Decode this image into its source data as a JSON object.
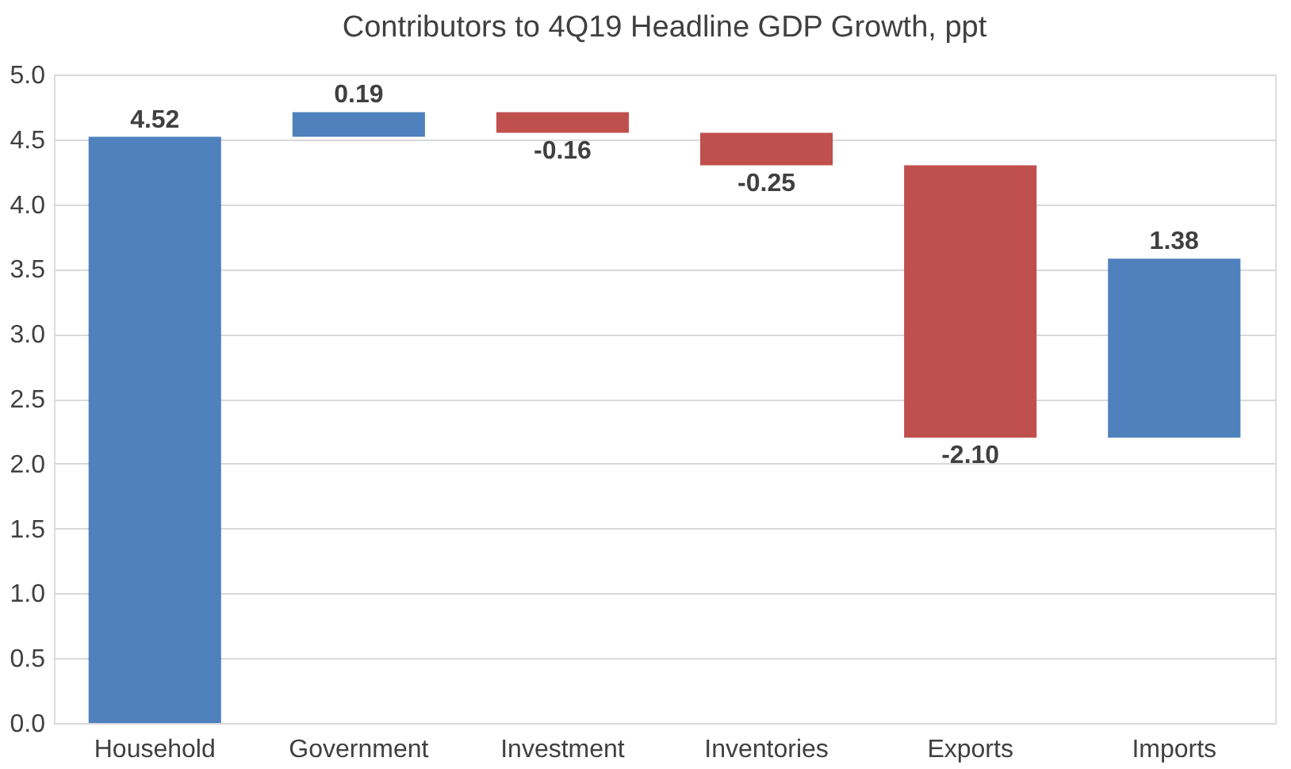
{
  "chart_data": {
    "type": "bar",
    "title": "Contributors to 4Q19 Headline GDP Growth, ppt",
    "categories": [
      "Household",
      "Government",
      "Investment",
      "Inventories",
      "Exports",
      "Imports"
    ],
    "values": [
      4.52,
      0.19,
      -0.16,
      -0.25,
      -2.1,
      1.38
    ],
    "base": [
      0,
      4.52,
      4.71,
      4.55,
      4.3,
      2.2
    ],
    "colors": [
      "#4f81bd",
      "#4f81bd",
      "#c0504d",
      "#c0504d",
      "#c0504d",
      "#4f81bd"
    ],
    "value_labels": [
      "4.52",
      "0.19",
      "-0.16",
      "-0.25",
      "-2.10",
      "1.38"
    ],
    "ylim": [
      0,
      5
    ],
    "yticks": [
      {
        "value": 0,
        "label": "0.0"
      },
      {
        "value": 0.5,
        "label": "0.5"
      },
      {
        "value": 1,
        "label": "1.0"
      },
      {
        "value": 1.5,
        "label": "1.5"
      },
      {
        "value": 2,
        "label": "2.0"
      },
      {
        "value": 2.5,
        "label": "2.5"
      },
      {
        "value": 3,
        "label": "3.0"
      },
      {
        "value": 3.5,
        "label": "3.5"
      },
      {
        "value": 4,
        "label": "4.0"
      },
      {
        "value": 4.5,
        "label": "4.5"
      },
      {
        "value": 5,
        "label": "5.0"
      }
    ],
    "grid": "y"
  }
}
